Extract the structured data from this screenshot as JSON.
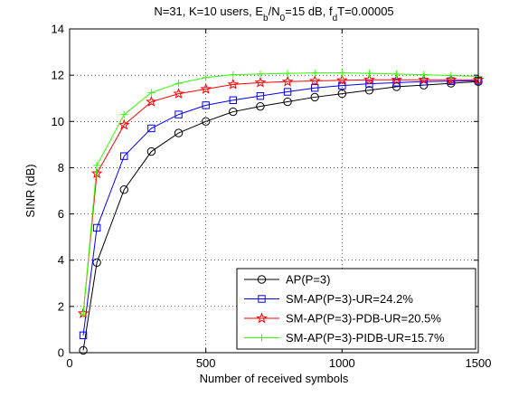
{
  "chart_data": {
    "type": "line",
    "title": {
      "prefix": "N=31, K=10 users, E",
      "sub1": "b",
      "mid1": "/N",
      "sub2": "0",
      "mid2": "=15 dB, f",
      "sub3": "d",
      "suffix": "T=0.00005"
    },
    "xlabel": "Number of received symbols",
    "ylabel": "SINR (dB)",
    "xlim": [
      0,
      1500
    ],
    "ylim": [
      0,
      14
    ],
    "xticks": [
      "0",
      "500",
      "1000",
      "1500"
    ],
    "yticks": [
      "0",
      "2",
      "4",
      "6",
      "8",
      "10",
      "12",
      "14"
    ],
    "grid": true,
    "legend_position": "lower-right",
    "x": [
      50,
      100,
      200,
      300,
      400,
      500,
      600,
      700,
      800,
      900,
      1000,
      1100,
      1200,
      1300,
      1400,
      1500
    ],
    "series": [
      {
        "name": "AP(P=3)",
        "color": "#000000",
        "marker": "circle",
        "values": [
          0.1,
          3.9,
          7.05,
          8.7,
          9.5,
          10.0,
          10.42,
          10.65,
          10.85,
          11.05,
          11.2,
          11.35,
          11.5,
          11.57,
          11.65,
          11.72
        ]
      },
      {
        "name": "SM-AP(P=3)-UR=24.2%",
        "color": "#0000ff",
        "marker": "square",
        "values": [
          0.75,
          5.4,
          8.5,
          9.7,
          10.3,
          10.7,
          10.92,
          11.1,
          11.28,
          11.45,
          11.55,
          11.63,
          11.68,
          11.72,
          11.74,
          11.76
        ]
      },
      {
        "name": "SM-AP(P=3)-PDB-UR=20.5%",
        "color": "#ff0000",
        "marker": "star",
        "values": [
          1.7,
          7.75,
          9.85,
          10.85,
          11.2,
          11.4,
          11.6,
          11.68,
          11.72,
          11.75,
          11.78,
          11.8,
          11.8,
          11.8,
          11.8,
          11.8
        ]
      },
      {
        "name": "SM-AP(P=3)-PIDB-UR=15.7%",
        "color": "#33ff00",
        "marker": "plus",
        "values": [
          1.65,
          8.1,
          10.3,
          11.25,
          11.65,
          11.9,
          12.02,
          12.05,
          12.08,
          12.1,
          12.1,
          12.08,
          12.05,
          12.02,
          11.98,
          11.95
        ]
      }
    ]
  }
}
